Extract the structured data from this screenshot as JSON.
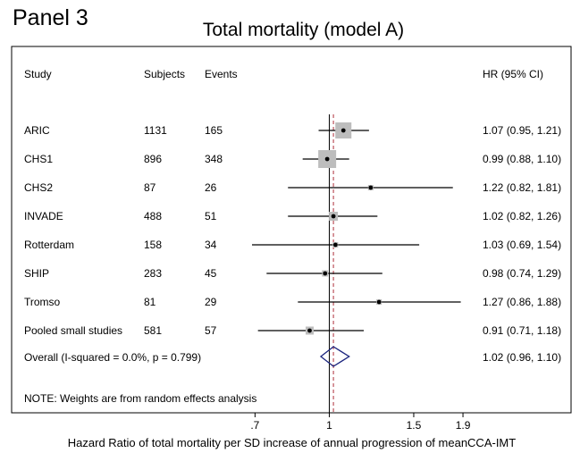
{
  "panel_label": "Panel 3",
  "chart_data": {
    "type": "forest",
    "title": "Total mortality (model A)",
    "xlabel": "Hazard Ratio of total mortality per SD increase of annual progression of meanCCA-IMT",
    "x_scale": "log",
    "xlim": [
      0.69,
      2.0
    ],
    "x_ticks": [
      0.7,
      1,
      1.5,
      1.9
    ],
    "x_tick_labels": [
      ".7",
      "1",
      "1.5",
      "1.9"
    ],
    "null_line": 1,
    "headers": {
      "study": "Study",
      "subjects": "Subjects",
      "events": "Events",
      "hr": "HR (95% CI)"
    },
    "studies": [
      {
        "name": "ARIC",
        "subjects": "1131",
        "events": "165",
        "hr": 1.07,
        "lo": 0.95,
        "hi": 1.21,
        "label": "1.07 (0.95, 1.21)"
      },
      {
        "name": "CHS1",
        "subjects": "896",
        "events": "348",
        "hr": 0.99,
        "lo": 0.88,
        "hi": 1.1,
        "label": "0.99 (0.88, 1.10)"
      },
      {
        "name": "CHS2",
        "subjects": "87",
        "events": "26",
        "hr": 1.22,
        "lo": 0.82,
        "hi": 1.81,
        "label": "1.22 (0.82, 1.81)"
      },
      {
        "name": "INVADE",
        "subjects": "488",
        "events": "51",
        "hr": 1.02,
        "lo": 0.82,
        "hi": 1.26,
        "label": "1.02 (0.82, 1.26)"
      },
      {
        "name": "Rotterdam",
        "subjects": "158",
        "events": "34",
        "hr": 1.03,
        "lo": 0.69,
        "hi": 1.54,
        "label": "1.03 (0.69, 1.54)"
      },
      {
        "name": "SHIP",
        "subjects": "283",
        "events": "45",
        "hr": 0.98,
        "lo": 0.74,
        "hi": 1.29,
        "label": "0.98 (0.74, 1.29)"
      },
      {
        "name": "Tromso",
        "subjects": "81",
        "events": "29",
        "hr": 1.27,
        "lo": 0.86,
        "hi": 1.88,
        "label": "1.27 (0.86, 1.88)"
      },
      {
        "name": "Pooled small studies",
        "subjects": "581",
        "events": "57",
        "hr": 0.91,
        "lo": 0.71,
        "hi": 1.18,
        "label": "0.91 (0.71, 1.18)"
      }
    ],
    "overall": {
      "name": "Overall  (I-squared = 0.0%, p = 0.799)",
      "hr": 1.02,
      "lo": 0.96,
      "hi": 1.1,
      "label": "1.02 (0.96, 1.10)"
    },
    "note": "NOTE: Weights are from random effects analysis",
    "colors": {
      "box": "#bdbdbd",
      "diamond": "#1a237e",
      "overall_line": "#b0303a"
    }
  }
}
